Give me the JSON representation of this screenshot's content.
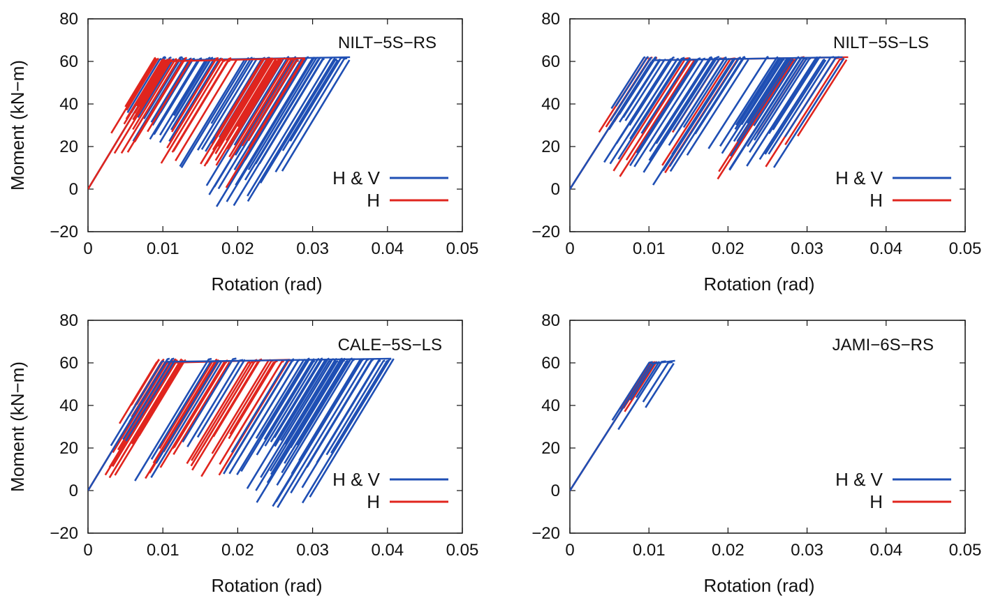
{
  "figure": {
    "description_free": true
  },
  "colors": {
    "hv": "#1f4fb4",
    "h": "#e0251e",
    "axis": "#111111"
  },
  "chart_data": [
    {
      "type": "line",
      "title": "NILT−5S−RS",
      "xlabel": "Rotation (rad)",
      "ylabel": "Moment (kN−m)",
      "xlim": [
        0,
        0.05
      ],
      "ylim": [
        -20,
        80
      ],
      "xticks": [
        "0",
        "0.01",
        "0.02",
        "0.03",
        "0.04",
        "0.05"
      ],
      "yticks": [
        "80",
        "60",
        "40",
        "20",
        "0",
        "−20"
      ],
      "legend": [
        "H & V",
        "H"
      ],
      "legend_position": "right",
      "series": [
        {
          "name": "H & V",
          "color": "#1f4fb4",
          "cycles": [
            {
              "start": 0.0095,
              "end": 0.0115,
              "drop": 30,
              "n": 6,
              "spread": 0.0006
            },
            {
              "start": 0.012,
              "end": 0.015,
              "drop": 40,
              "n": 8,
              "spread": 0.0008
            },
            {
              "start": 0.0155,
              "end": 0.018,
              "drop": 45,
              "n": 8,
              "spread": 0.0008
            },
            {
              "start": 0.021,
              "end": 0.024,
              "drop": 55,
              "n": 10,
              "spread": 0.001
            },
            {
              "start": 0.0265,
              "end": 0.0335,
              "drop": 70,
              "n": 22,
              "spread": 0.0012
            },
            {
              "start": 0.033,
              "end": 0.035,
              "drop": 55,
              "n": 4,
              "spread": 0.0004
            }
          ],
          "peak": 62
        },
        {
          "name": "H",
          "color": "#e0251e",
          "cycles": [
            {
              "start": 0.009,
              "end": 0.011,
              "drop": 35,
              "n": 10,
              "spread": 0.0006
            },
            {
              "start": 0.011,
              "end": 0.0135,
              "drop": 45,
              "n": 8,
              "spread": 0.0007
            },
            {
              "start": 0.017,
              "end": 0.0195,
              "drop": 50,
              "n": 6,
              "spread": 0.0008
            },
            {
              "start": 0.0235,
              "end": 0.0255,
              "drop": 55,
              "n": 18,
              "spread": 0.001
            },
            {
              "start": 0.0265,
              "end": 0.029,
              "drop": 60,
              "n": 6,
              "spread": 0.0006
            }
          ],
          "peak": 61.5
        }
      ]
    },
    {
      "type": "line",
      "title": "NILT−5S−LS",
      "xlabel": "Rotation (rad)",
      "ylabel": "",
      "xlim": [
        0,
        0.05
      ],
      "ylim": [
        -20,
        80
      ],
      "xticks": [
        "0",
        "0.01",
        "0.02",
        "0.03",
        "0.04",
        "0.05"
      ],
      "yticks": [
        "80",
        "60",
        "40",
        "20",
        "0",
        "−20"
      ],
      "legend": [
        "H & V",
        "H"
      ],
      "legend_position": "right",
      "series": [
        {
          "name": "H & V",
          "color": "#1f4fb4",
          "cycles": [
            {
              "start": 0.0095,
              "end": 0.0115,
              "drop": 40,
              "n": 8,
              "spread": 0.0006
            },
            {
              "start": 0.012,
              "end": 0.015,
              "drop": 50,
              "n": 10,
              "spread": 0.0008
            },
            {
              "start": 0.016,
              "end": 0.02,
              "drop": 55,
              "n": 10,
              "spread": 0.001
            },
            {
              "start": 0.02,
              "end": 0.0225,
              "drop": 60,
              "n": 8,
              "spread": 0.0008
            },
            {
              "start": 0.0255,
              "end": 0.032,
              "drop": 55,
              "n": 22,
              "spread": 0.0012
            },
            {
              "start": 0.033,
              "end": 0.0345,
              "drop": 55,
              "n": 3,
              "spread": 0.0004
            }
          ],
          "peak": 62
        },
        {
          "name": "H",
          "color": "#e0251e",
          "cycles": [
            {
              "start": 0.0095,
              "end": 0.011,
              "drop": 35,
              "n": 4,
              "spread": 0.0005
            },
            {
              "start": 0.0145,
              "end": 0.016,
              "drop": 55,
              "n": 3,
              "spread": 0.0006
            },
            {
              "start": 0.019,
              "end": 0.021,
              "drop": 60,
              "n": 3,
              "spread": 0.0007
            },
            {
              "start": 0.028,
              "end": 0.03,
              "drop": 60,
              "n": 4,
              "spread": 0.0008
            },
            {
              "start": 0.0335,
              "end": 0.0352,
              "drop": 60,
              "n": 3,
              "spread": 0.0005
            }
          ],
          "peak": 62
        }
      ]
    },
    {
      "type": "line",
      "title": "CALE−5S−LS",
      "xlabel": "Rotation (rad)",
      "ylabel": "Moment (kN−m)",
      "xlim": [
        0,
        0.05
      ],
      "ylim": [
        -20,
        80
      ],
      "xticks": [
        "0",
        "0.01",
        "0.02",
        "0.03",
        "0.04",
        "0.05"
      ],
      "yticks": [
        "80",
        "60",
        "40",
        "20",
        "0",
        "−20"
      ],
      "legend": [
        "H & V",
        "H"
      ],
      "legend_position": "right",
      "series": [
        {
          "name": "H & V",
          "color": "#1f4fb4",
          "cycles": [
            {
              "start": 0.01,
              "end": 0.0115,
              "drop": 40,
              "n": 4,
              "spread": 0.0005
            },
            {
              "start": 0.016,
              "end": 0.018,
              "drop": 60,
              "n": 4,
              "spread": 0.0006
            },
            {
              "start": 0.0195,
              "end": 0.021,
              "drop": 65,
              "n": 3,
              "spread": 0.0006
            },
            {
              "start": 0.027,
              "end": 0.0345,
              "drop": 65,
              "n": 24,
              "spread": 0.0012
            },
            {
              "start": 0.0335,
              "end": 0.0405,
              "drop": 70,
              "n": 20,
              "spread": 0.0012
            }
          ],
          "peak": 62
        },
        {
          "name": "H",
          "color": "#e0251e",
          "cycles": [
            {
              "start": 0.009,
              "end": 0.0105,
              "drop": 30,
              "n": 10,
              "spread": 0.0005
            },
            {
              "start": 0.011,
              "end": 0.013,
              "drop": 55,
              "n": 10,
              "spread": 0.0007
            },
            {
              "start": 0.0165,
              "end": 0.019,
              "drop": 55,
              "n": 10,
              "spread": 0.0008
            },
            {
              "start": 0.021,
              "end": 0.027,
              "drop": 55,
              "n": 14,
              "spread": 0.0009
            }
          ],
          "peak": 61.5
        }
      ]
    },
    {
      "type": "line",
      "title": "JAMI−6S−RS",
      "xlabel": "Rotation (rad)",
      "ylabel": "",
      "xlim": [
        0,
        0.05
      ],
      "ylim": [
        -20,
        80
      ],
      "xticks": [
        "0",
        "0.01",
        "0.02",
        "0.03",
        "0.04",
        "0.05"
      ],
      "yticks": [
        "80",
        "60",
        "40",
        "20",
        "0",
        "−20"
      ],
      "legend": [
        "H & V",
        "H"
      ],
      "legend_position": "right",
      "series": [
        {
          "name": "H & V",
          "color": "#1f4fb4",
          "cycles": [
            {
              "start": 0.01,
              "end": 0.0115,
              "drop": 28,
              "n": 3,
              "spread": 0.0004
            },
            {
              "start": 0.0115,
              "end": 0.0133,
              "drop": 33,
              "n": 3,
              "spread": 0.0004
            }
          ],
          "peak": 61
        },
        {
          "name": "H",
          "color": "#e0251e",
          "cycles": [
            {
              "start": 0.01,
              "end": 0.011,
              "drop": 25,
              "n": 3,
              "spread": 0.0003
            }
          ],
          "peak": 60.5
        }
      ]
    }
  ]
}
